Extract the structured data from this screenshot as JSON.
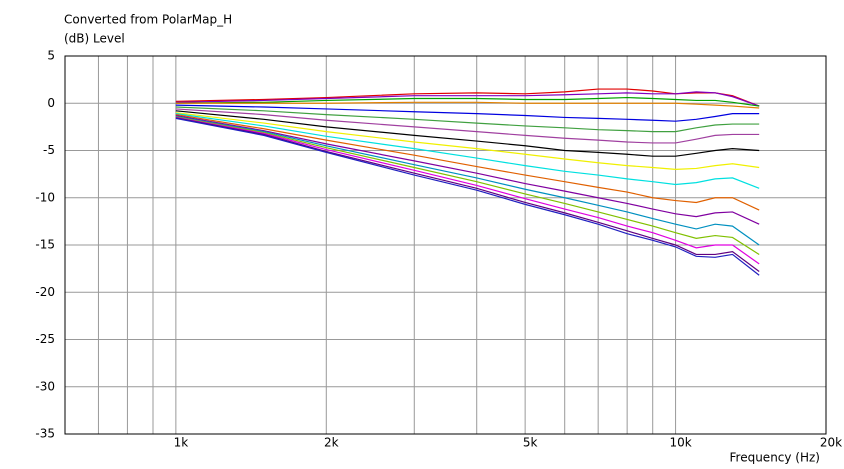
{
  "chart_data": {
    "type": "line",
    "title": "Converted from PolarMap_H",
    "ylabel": "(dB)  Level",
    "xlabel": "Frequency  (Hz)",
    "log_x": true,
    "grid": true,
    "xlim": [
      600,
      20000
    ],
    "ylim": [
      -35,
      5
    ],
    "xticks": [
      {
        "value": 1000,
        "label": "1k"
      },
      {
        "value": 2000,
        "label": "2k"
      },
      {
        "value": 5000,
        "label": "5k"
      },
      {
        "value": 10000,
        "label": "10k"
      },
      {
        "value": 20000,
        "label": "20k"
      }
    ],
    "xminor": [
      700,
      800,
      900,
      3000,
      4000,
      6000,
      7000,
      8000,
      9000
    ],
    "yticks": [
      5,
      0,
      -5,
      -10,
      -15,
      -20,
      -25,
      -30,
      -35
    ],
    "x": [
      1000,
      1500,
      2000,
      3000,
      4000,
      5000,
      6000,
      7000,
      8000,
      9000,
      10000,
      11000,
      12000,
      13000,
      14700
    ],
    "series": [
      {
        "color": "#e00000",
        "values": [
          0.2,
          0.4,
          0.6,
          1.0,
          1.1,
          1.0,
          1.2,
          1.5,
          1.5,
          1.3,
          1.0,
          1.1,
          1.1,
          0.8,
          -0.3
        ]
      },
      {
        "color": "#8000c0",
        "values": [
          0.1,
          0.3,
          0.5,
          0.8,
          0.8,
          0.8,
          0.9,
          1.0,
          1.1,
          1.0,
          1.0,
          1.2,
          1.1,
          0.7,
          -0.3
        ]
      },
      {
        "color": "#00a000",
        "values": [
          0,
          0.1,
          0.3,
          0.5,
          0.5,
          0.4,
          0.4,
          0.5,
          0.6,
          0.5,
          0.4,
          0.3,
          0.3,
          0.1,
          -0.3
        ]
      },
      {
        "color": "#e08000",
        "values": [
          0,
          0,
          0,
          0.1,
          0.1,
          0,
          0,
          0,
          0,
          0,
          0,
          -0.1,
          -0.2,
          -0.3,
          -0.5
        ]
      },
      {
        "color": "#0000e0",
        "values": [
          -0.2,
          -0.4,
          -0.6,
          -0.9,
          -1.1,
          -1.3,
          -1.5,
          -1.6,
          -1.7,
          -1.8,
          -1.9,
          -1.7,
          -1.4,
          -1.1,
          -1.1
        ]
      },
      {
        "color": "#40a040",
        "values": [
          -0.4,
          -0.8,
          -1.2,
          -1.7,
          -2.1,
          -2.4,
          -2.6,
          -2.8,
          -2.9,
          -3.0,
          -3.0,
          -2.6,
          -2.3,
          -2.2,
          -2.2
        ]
      },
      {
        "color": "#a040a0",
        "values": [
          -0.6,
          -1.2,
          -1.8,
          -2.5,
          -3.0,
          -3.4,
          -3.7,
          -3.9,
          -4.1,
          -4.2,
          -4.2,
          -3.8,
          -3.4,
          -3.3,
          -3.3
        ]
      },
      {
        "color": "#000000",
        "values": [
          -0.8,
          -1.7,
          -2.5,
          -3.4,
          -4.0,
          -4.5,
          -5.0,
          -5.2,
          -5.4,
          -5.6,
          -5.6,
          -5.3,
          -5.0,
          -4.8,
          -5.0
        ]
      },
      {
        "color": "#f0f000",
        "values": [
          -1.0,
          -2.1,
          -3.0,
          -4.1,
          -4.8,
          -5.4,
          -5.9,
          -6.3,
          -6.6,
          -6.8,
          -7.0,
          -6.9,
          -6.6,
          -6.4,
          -6.8
        ]
      },
      {
        "color": "#00e0e0",
        "values": [
          -1.1,
          -2.4,
          -3.5,
          -4.8,
          -5.8,
          -6.6,
          -7.2,
          -7.6,
          -8.0,
          -8.3,
          -8.6,
          -8.4,
          -8.0,
          -7.9,
          -9.0
        ]
      },
      {
        "color": "#e06000",
        "values": [
          -1.2,
          -2.7,
          -3.9,
          -5.5,
          -6.7,
          -7.6,
          -8.3,
          -8.9,
          -9.4,
          -10.0,
          -10.3,
          -10.5,
          -10.0,
          -10.0,
          -11.3
        ]
      },
      {
        "color": "#8000a0",
        "values": [
          -1.3,
          -2.9,
          -4.3,
          -6.1,
          -7.4,
          -8.5,
          -9.3,
          -10.0,
          -10.6,
          -11.2,
          -11.7,
          -12.0,
          -11.6,
          -11.5,
          -12.8
        ]
      },
      {
        "color": "#0090c0",
        "values": [
          -1.4,
          -3.0,
          -4.5,
          -6.5,
          -7.9,
          -9.1,
          -10.0,
          -10.8,
          -11.5,
          -12.2,
          -12.8,
          -13.3,
          -12.8,
          -13.0,
          -15.0
        ]
      },
      {
        "color": "#80c000",
        "values": [
          -1.45,
          -3.1,
          -4.7,
          -6.8,
          -8.3,
          -9.6,
          -10.6,
          -11.5,
          -12.3,
          -13.0,
          -13.7,
          -14.3,
          -14.0,
          -14.2,
          -16.0
        ]
      },
      {
        "color": "#e000e0",
        "values": [
          -1.5,
          -3.2,
          -4.9,
          -7.1,
          -8.7,
          -10.1,
          -11.2,
          -12.1,
          -13.0,
          -13.7,
          -14.5,
          -15.3,
          -15.0,
          -15.0,
          -17.0
        ]
      },
      {
        "color": "#600080",
        "values": [
          -1.55,
          -3.3,
          -5.1,
          -7.4,
          -9.0,
          -10.5,
          -11.6,
          -12.6,
          -13.5,
          -14.3,
          -15.0,
          -16.0,
          -16.0,
          -15.7,
          -17.8
        ]
      },
      {
        "color": "#2020c0",
        "values": [
          -1.6,
          -3.4,
          -5.2,
          -7.6,
          -9.2,
          -10.7,
          -11.8,
          -12.8,
          -13.8,
          -14.5,
          -15.2,
          -16.2,
          -16.3,
          -16.0,
          -18.2
        ]
      }
    ]
  }
}
